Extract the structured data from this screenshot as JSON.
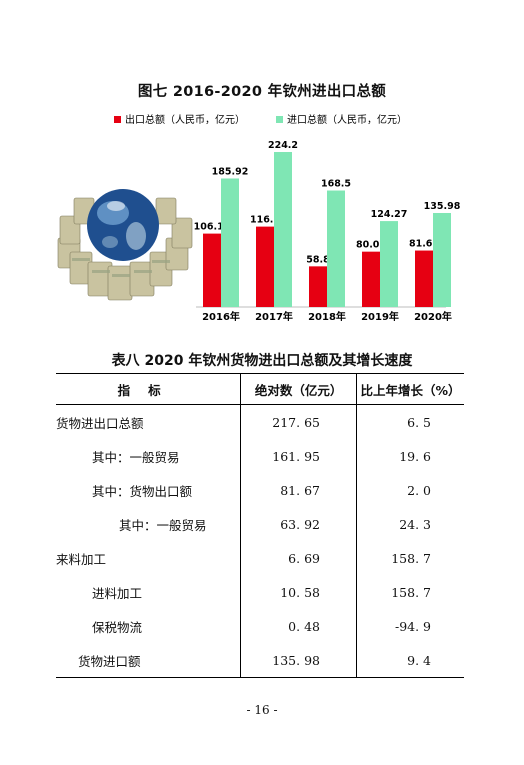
{
  "chart_data": {
    "type": "bar",
    "title": "图七    2016-2020 年钦州进出口总额",
    "categories": [
      "2016年",
      "2017年",
      "2018年",
      "2019年",
      "2020年"
    ],
    "series": [
      {
        "name": "出口总额（人民币，亿元）",
        "color": "#e60012",
        "values": [
          106.17,
          116.3,
          58.8,
          80.05,
          81.67
        ],
        "labels": [
          "106.17",
          "116.3",
          "58.8",
          "80.05",
          "81.67"
        ]
      },
      {
        "name": "进口总额（人民币，亿元）",
        "color": "#7fe6b4",
        "values": [
          185.92,
          224.2,
          168.5,
          124.27,
          135.98
        ],
        "labels": [
          "185.92",
          "224.2",
          "168.5",
          "124.27",
          "135.98"
        ]
      }
    ],
    "ylim": [
      0,
      230
    ],
    "grid": false,
    "legend": "top"
  },
  "table": {
    "title": "表八    2020 年钦州货物进出口总额及其增长速度",
    "headers": [
      "指标",
      "绝对数（亿元）",
      "比上年增长（%）"
    ],
    "rows": [
      {
        "label": "货物进出口总额",
        "value": "217. 65",
        "growth": "6. 5"
      },
      {
        "label": "其中：一般贸易",
        "value": "161. 95",
        "growth": "19. 6"
      },
      {
        "label": "其中：货物出口额",
        "value": "81. 67",
        "growth": "2. 0"
      },
      {
        "label": "其中：一般贸易",
        "value": "63. 92",
        "growth": "24. 3"
      },
      {
        "label": "来料加工",
        "value": "6. 69",
        "growth": "158. 7"
      },
      {
        "label": "进料加工",
        "value": "10. 58",
        "growth": "158. 7"
      },
      {
        "label": "保税物流",
        "value": "0. 48",
        "growth": "-94. 9"
      },
      {
        "label": "货物进口额",
        "value": "135. 98",
        "growth": "9. 4"
      }
    ]
  },
  "page_number": "- 16 -"
}
